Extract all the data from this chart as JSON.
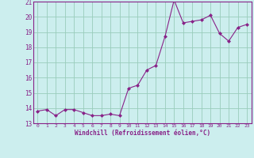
{
  "x": [
    0,
    1,
    2,
    3,
    4,
    5,
    6,
    7,
    8,
    9,
    10,
    11,
    12,
    13,
    14,
    15,
    16,
    17,
    18,
    19,
    20,
    21,
    22,
    23
  ],
  "y": [
    13.8,
    13.9,
    13.5,
    13.9,
    13.9,
    13.7,
    13.5,
    13.5,
    13.6,
    13.5,
    15.3,
    15.5,
    16.5,
    16.8,
    18.7,
    21.1,
    19.6,
    19.7,
    19.8,
    20.1,
    18.9,
    18.4,
    19.3,
    19.5
  ],
  "xlabel": "Windchill (Refroidissement éolien,°C)",
  "ylim": [
    13,
    21
  ],
  "xlim": [
    -0.5,
    23.5
  ],
  "yticks": [
    13,
    14,
    15,
    16,
    17,
    18,
    19,
    20,
    21
  ],
  "xticks": [
    0,
    1,
    2,
    3,
    4,
    5,
    6,
    7,
    8,
    9,
    10,
    11,
    12,
    13,
    14,
    15,
    16,
    17,
    18,
    19,
    20,
    21,
    22,
    23
  ],
  "line_color": "#882288",
  "marker_color": "#882288",
  "bg_color": "#cceeee",
  "grid_color": "#99ccbb",
  "tick_label_color": "#882288",
  "xlabel_color": "#882288"
}
